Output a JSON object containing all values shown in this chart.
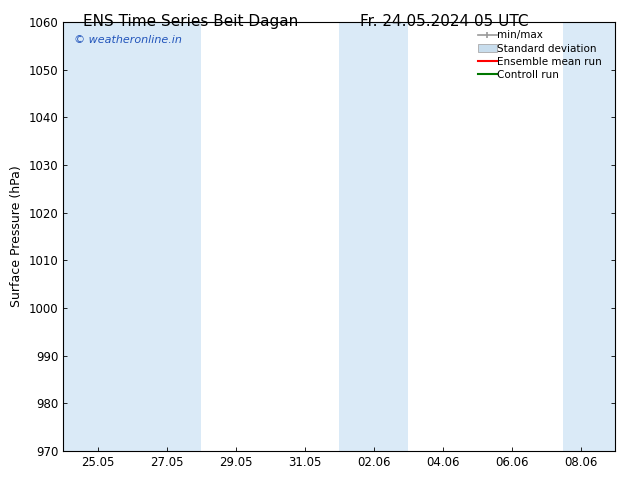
{
  "title_left": "ENS Time Series Beit Dagan",
  "title_right": "Fr. 24.05.2024 05 UTC",
  "ylabel": "Surface Pressure (hPa)",
  "ylim": [
    970,
    1060
  ],
  "yticks": [
    970,
    980,
    990,
    1000,
    1010,
    1020,
    1030,
    1040,
    1050,
    1060
  ],
  "xtick_labels": [
    "25.05",
    "27.05",
    "29.05",
    "31.05",
    "02.06",
    "04.06",
    "06.06",
    "08.06"
  ],
  "xtick_positions": [
    1,
    3,
    5,
    7,
    9,
    11,
    13,
    15
  ],
  "xlim": [
    0,
    16
  ],
  "shaded_bands": [
    {
      "x_start": 0.0,
      "x_end": 2.0,
      "color": "#daeaf7"
    },
    {
      "x_start": 2.0,
      "x_end": 4.0,
      "color": "#daeaf7"
    },
    {
      "x_start": 8.0,
      "x_end": 10.0,
      "color": "#daeaf7"
    },
    {
      "x_start": 14.5,
      "x_end": 16.0,
      "color": "#daeaf7"
    }
  ],
  "legend_items": [
    {
      "label": "min/max",
      "color": "#aaaaaa",
      "type": "errorbar"
    },
    {
      "label": "Standard deviation",
      "color": "#c8dded",
      "type": "box"
    },
    {
      "label": "Ensemble mean run",
      "color": "#ff0000",
      "type": "line"
    },
    {
      "label": "Controll run",
      "color": "#007700",
      "type": "line"
    }
  ],
  "watermark_text": "© weatheronline.in",
  "watermark_color": "#2255bb",
  "bg_color": "#ffffff",
  "plot_bg_color": "#ffffff",
  "axis_color": "#000000",
  "title_fontsize": 11,
  "tick_fontsize": 8.5,
  "ylabel_fontsize": 9
}
